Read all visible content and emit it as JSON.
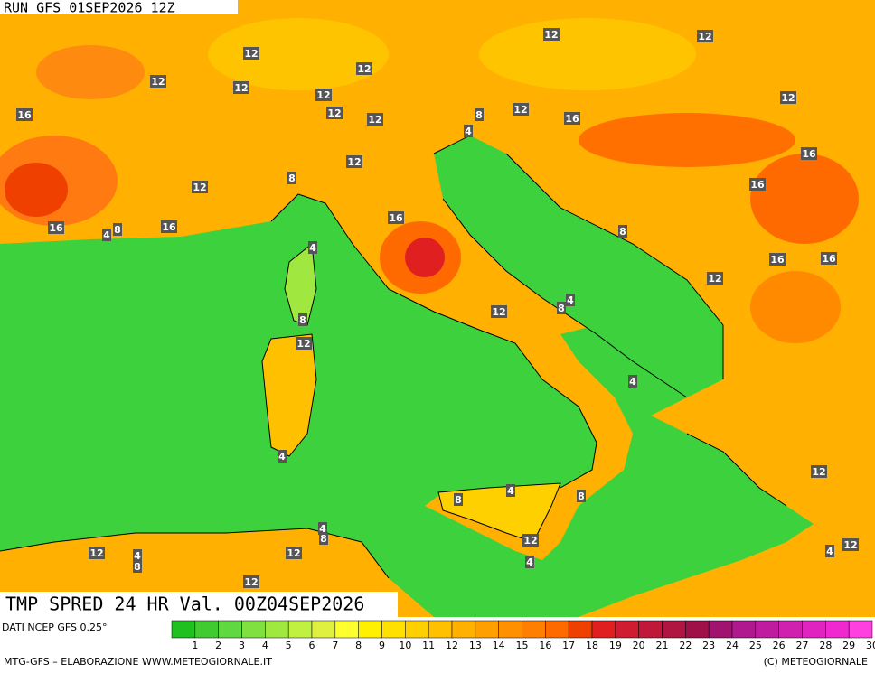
{
  "header": {
    "run": "RUN GFS 01SEP2026 12Z"
  },
  "title": "TMP SPRED 24 HR Val. 00Z04SEP2026",
  "source": "DATI NCEP GFS 0.25°",
  "footer_left": "MTG-GFS – ELABORAZIONE WWW.METEOGIORNALE.IT",
  "footer_right": "(C) METEOGIORNALE",
  "legend": {
    "labels": [
      1,
      2,
      3,
      4,
      5,
      6,
      7,
      8,
      9,
      10,
      11,
      12,
      13,
      14,
      15,
      16,
      17,
      18,
      19,
      20,
      21,
      22,
      23,
      24,
      25,
      26,
      27,
      28,
      29,
      30
    ],
    "colors": [
      "#20c020",
      "#40cc30",
      "#60d840",
      "#80e040",
      "#a0e840",
      "#c0f040",
      "#e0f040",
      "#ffff30",
      "#fff000",
      "#ffe000",
      "#ffd000",
      "#ffc000",
      "#ffb000",
      "#ffa000",
      "#ff9000",
      "#ff8000",
      "#ff6a00",
      "#f04000",
      "#e02020",
      "#d01c30",
      "#c01838",
      "#b01440",
      "#a01048",
      "#a01470",
      "#b01890",
      "#c01ca0",
      "#d020b0",
      "#e024c0",
      "#f028d0",
      "#ff40e0"
    ]
  },
  "contour_labels": [
    "12",
    "12",
    "12",
    "12",
    "12",
    "12",
    "12",
    "12",
    "12",
    "12",
    "12",
    "16",
    "16",
    "8",
    "4",
    "12",
    "16",
    "12",
    "8",
    "16",
    "16",
    "16",
    "8",
    "4",
    "16",
    "8",
    "4",
    "16",
    "16",
    "12",
    "4",
    "8",
    "12",
    "8",
    "12",
    "4",
    "4",
    "12",
    "4",
    "8",
    "8",
    "4",
    "8",
    "12",
    "12",
    "4",
    "8",
    "12",
    "12",
    "4",
    "4",
    "12"
  ]
}
